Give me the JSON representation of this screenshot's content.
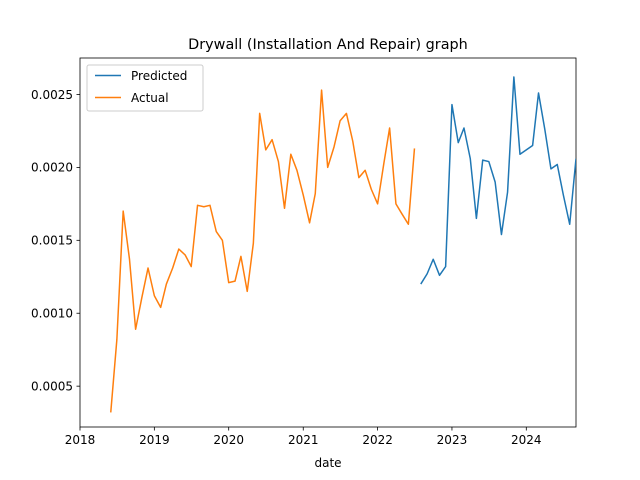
{
  "chart_data": {
    "type": "line",
    "title": "Drywall (Installation And Repair) graph",
    "xlabel": "date",
    "ylabel": "",
    "xlim": [
      "2018-01-01",
      "2024-09-01"
    ],
    "ylim": [
      0.00022,
      0.00275
    ],
    "x_ticks": [
      "2018-01-01",
      "2019-01-01",
      "2020-01-01",
      "2021-01-01",
      "2022-01-01",
      "2023-01-01",
      "2024-01-01"
    ],
    "x_tick_labels": [
      "2018",
      "2019",
      "2020",
      "2021",
      "2022",
      "2023",
      "2024"
    ],
    "y_ticks": [
      0.0005,
      0.001,
      0.0015,
      0.002,
      0.0025
    ],
    "y_tick_labels": [
      "0.0005",
      "0.0010",
      "0.0015",
      "0.0020",
      "0.0025"
    ],
    "grid": false,
    "legend_position": "upper-left",
    "series": [
      {
        "name": "Predicted",
        "color": "#1f77b4",
        "points": [
          [
            "2022-08-01",
            0.0012
          ],
          [
            "2022-09-01",
            0.00127
          ],
          [
            "2022-10-01",
            0.00137
          ],
          [
            "2022-11-01",
            0.00126
          ],
          [
            "2022-12-01",
            0.00132
          ],
          [
            "2023-01-01",
            0.00243
          ],
          [
            "2023-02-01",
            0.00217
          ],
          [
            "2023-03-01",
            0.00227
          ],
          [
            "2023-04-01",
            0.00206
          ],
          [
            "2023-05-01",
            0.00165
          ],
          [
            "2023-06-01",
            0.00205
          ],
          [
            "2023-07-01",
            0.00204
          ],
          [
            "2023-08-01",
            0.0019
          ],
          [
            "2023-09-01",
            0.00154
          ],
          [
            "2023-10-01",
            0.00183
          ],
          [
            "2023-11-01",
            0.00262
          ],
          [
            "2023-12-01",
            0.00209
          ],
          [
            "2024-01-01",
            0.00212
          ],
          [
            "2024-02-01",
            0.00215
          ],
          [
            "2024-03-01",
            0.00251
          ],
          [
            "2024-04-01",
            0.00226
          ],
          [
            "2024-05-01",
            0.00199
          ],
          [
            "2024-06-01",
            0.00202
          ],
          [
            "2024-07-01",
            0.00181
          ],
          [
            "2024-08-01",
            0.00161
          ],
          [
            "2024-09-01",
            0.00206
          ]
        ]
      },
      {
        "name": "Actual",
        "color": "#ff7f0e",
        "points": [
          [
            "2018-06-01",
            0.00032
          ],
          [
            "2018-07-01",
            0.00082
          ],
          [
            "2018-08-01",
            0.0017
          ],
          [
            "2018-09-01",
            0.00137
          ],
          [
            "2018-10-01",
            0.00089
          ],
          [
            "2018-11-01",
            0.00111
          ],
          [
            "2018-12-01",
            0.00131
          ],
          [
            "2019-01-01",
            0.00112
          ],
          [
            "2019-02-01",
            0.00104
          ],
          [
            "2019-03-01",
            0.0012
          ],
          [
            "2019-04-01",
            0.00131
          ],
          [
            "2019-05-01",
            0.00144
          ],
          [
            "2019-06-01",
            0.0014
          ],
          [
            "2019-07-01",
            0.00132
          ],
          [
            "2019-08-01",
            0.00174
          ],
          [
            "2019-09-01",
            0.00173
          ],
          [
            "2019-10-01",
            0.00174
          ],
          [
            "2019-11-01",
            0.00156
          ],
          [
            "2019-12-01",
            0.0015
          ],
          [
            "2020-01-01",
            0.00121
          ],
          [
            "2020-02-01",
            0.00122
          ],
          [
            "2020-03-01",
            0.00139
          ],
          [
            "2020-04-01",
            0.00115
          ],
          [
            "2020-05-01",
            0.00148
          ],
          [
            "2020-06-01",
            0.00237
          ],
          [
            "2020-07-01",
            0.00212
          ],
          [
            "2020-08-01",
            0.00219
          ],
          [
            "2020-09-01",
            0.00204
          ],
          [
            "2020-10-01",
            0.00172
          ],
          [
            "2020-11-01",
            0.00209
          ],
          [
            "2020-12-01",
            0.00198
          ],
          [
            "2021-01-01",
            0.00181
          ],
          [
            "2021-02-01",
            0.00162
          ],
          [
            "2021-03-01",
            0.00182
          ],
          [
            "2021-04-01",
            0.00253
          ],
          [
            "2021-05-01",
            0.002
          ],
          [
            "2021-06-01",
            0.00214
          ],
          [
            "2021-07-01",
            0.00232
          ],
          [
            "2021-08-01",
            0.00237
          ],
          [
            "2021-09-01",
            0.00218
          ],
          [
            "2021-10-01",
            0.00193
          ],
          [
            "2021-11-01",
            0.00198
          ],
          [
            "2021-12-01",
            0.00185
          ],
          [
            "2022-01-01",
            0.00175
          ],
          [
            "2022-02-01",
            0.00203
          ],
          [
            "2022-03-01",
            0.00227
          ],
          [
            "2022-04-01",
            0.00175
          ],
          [
            "2022-05-01",
            0.00168
          ],
          [
            "2022-06-01",
            0.00161
          ],
          [
            "2022-07-01",
            0.00213
          ]
        ]
      }
    ]
  }
}
